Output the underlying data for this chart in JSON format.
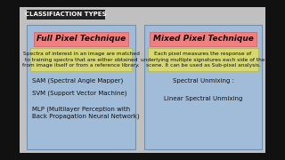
{
  "bg_color": "#c0c0c0",
  "outer_bg": "#111111",
  "title_box_color": "#222222",
  "title_text": "CLASSIFIACTION TYPES",
  "title_text_color": "#ffffff",
  "panel_bg": "#a0bcd8",
  "panel_border": "#7090b0",
  "left_title": "Full Pixel Technique",
  "right_title": "Mixed Pixel Technique",
  "title_pink": "#f08080",
  "desc_yellow": "#d8d870",
  "left_desc": "Spectra of interest in an image are matched\nto training spectra that are either obtained\nfrom image itself or from a reference library.",
  "right_desc": "Each pixel measures the response of\nunderlying multiple signatures each side of the\nscene. It can be used as Sub-pixel analysis.",
  "left_items": [
    "SAM (Spectral Angle Mapper)",
    "SVM (Support Vector Machine)",
    "MLP (Multilayer Perception with\nBack Propagation Neural Network)"
  ],
  "right_items": [
    "Spectral Unmixing :",
    "Linear Spectral Unmixing"
  ],
  "item_color": "#111111",
  "desc_font_size": 4.2,
  "item_font_size": 5.0,
  "title_font_size": 6.5,
  "header_font_size": 5.0
}
